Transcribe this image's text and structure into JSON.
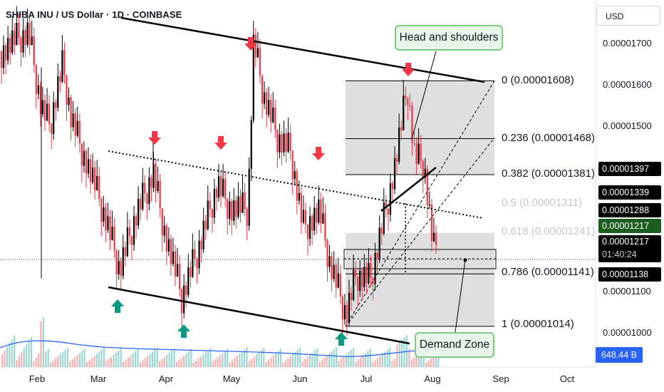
{
  "header": {
    "title": "SHIBA INU / US Dollar · 1D · COINBASE",
    "currency": "USD"
  },
  "chart_data": {
    "type": "candlestick",
    "title": "SHIBA INU / US Dollar · 1D · COINBASE",
    "y_axis": {
      "ticks": [
        "0.00001700",
        "0.00001600",
        "0.00001500",
        "0.00001100",
        "0.00001000"
      ],
      "range": [
        9.2e-06,
        1.78e-05
      ]
    },
    "x_axis": {
      "ticks": [
        "Feb",
        "Mar",
        "Apr",
        "May",
        "Jun",
        "Jul",
        "Aug",
        "Sep",
        "Oct"
      ]
    },
    "price_labels": {
      "p1397": "0.00001397",
      "p1339": "0.00001339",
      "p1288": "0.00001288",
      "p1217": "0.00001217",
      "current": "0.00001217",
      "countdown": "01:40:24",
      "p1138": "0.00001138"
    },
    "volume_label": "648.44 B",
    "fibonacci": [
      {
        "label": "0 (0.00001608)",
        "value": 1.608e-05
      },
      {
        "label": "0.236 (0.00001468)",
        "value": 1.468e-05
      },
      {
        "label": "0.382 (0.00001381)",
        "value": 1.381e-05
      },
      {
        "label": "0.5 (0.00001311)",
        "value": 1.311e-05
      },
      {
        "label": "0.618 (0.00001241)",
        "value": 1.241e-05
      },
      {
        "label": "0.786 (0.00001141)",
        "value": 1.141e-05
      },
      {
        "label": "1 (0.00001014)",
        "value": 1.014e-05
      }
    ],
    "annotations": {
      "head_and_shoulders": "Head and shoulders",
      "demand_zone": "Demand Zone"
    },
    "colors": {
      "up": "#089981",
      "down": "#f23645",
      "candle": "#000000",
      "fib_zone": "#d9d9d9",
      "callout_bg": "#e8f5e9",
      "callout_border": "#81c784",
      "volume_ma": "#2962ff"
    }
  }
}
